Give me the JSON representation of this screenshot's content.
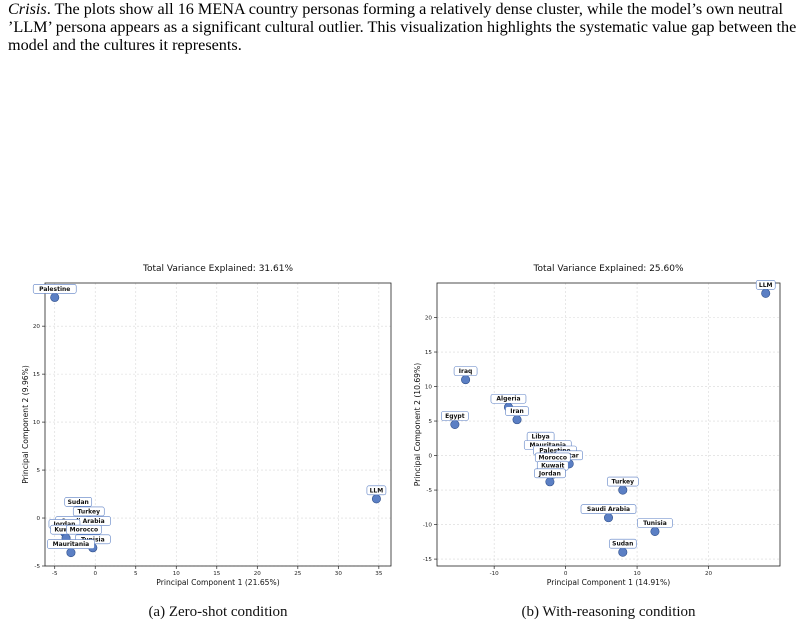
{
  "caption": {
    "italic_lead": "Crisis",
    "text": ". The plots show all 16 MENA country personas forming a relatively dense cluster, while the model’s own neutral ’LLM’ persona appears as a significant cultural outlier. This visualization highlights the systematic value gap between the model and the cultures it represents."
  },
  "chart_data": [
    {
      "type": "scatter",
      "title": "Total Variance Explained: 31.61%",
      "xlabel": "Principal Component 1 (21.65%)",
      "ylabel": "Principal Component 2 (9.96%)",
      "xlim": [
        -6.2,
        36.5
      ],
      "ylim": [
        -5,
        24.5
      ],
      "xticks": [
        -5,
        0,
        5,
        10,
        15,
        20,
        25,
        30,
        35
      ],
      "yticks": [
        -5,
        0,
        5,
        10,
        15,
        20
      ],
      "grid": true,
      "points": [
        {
          "label": "Palestine",
          "x": -5,
          "y": 23
        },
        {
          "label": "LLM",
          "x": 34.7,
          "y": 2
        },
        {
          "label": "Sudan",
          "x": -2.1,
          "y": 0.8
        },
        {
          "label": "Turkey",
          "x": -0.8,
          "y": -0.2
        },
        {
          "label": "Saudi Arabia",
          "x": -1.5,
          "y": -1.2
        },
        {
          "label": "Jordan",
          "x": -3.8,
          "y": -1.5
        },
        {
          "label": "Kuwait",
          "x": -3.6,
          "y": -2.1
        },
        {
          "label": "Morocco",
          "x": -1.4,
          "y": -2.1
        },
        {
          "label": "Tunisia",
          "x": -0.3,
          "y": -3.1
        },
        {
          "label": "Mauritania",
          "x": -3.0,
          "y": -3.6
        }
      ],
      "caption": "(a) Zero-shot condition"
    },
    {
      "type": "scatter",
      "title": "Total Variance Explained: 25.60%",
      "xlabel": "Principal Component 1 (14.91%)",
      "ylabel": "Principal Component 2 (10.69%)",
      "xlim": [
        -18,
        30
      ],
      "ylim": [
        -16,
        25
      ],
      "xticks": [
        -10,
        0,
        10,
        20
      ],
      "yticks": [
        -15,
        -10,
        -5,
        0,
        5,
        10,
        15,
        20
      ],
      "grid": true,
      "points": [
        {
          "label": "LLM",
          "x": 28,
          "y": 23.5
        },
        {
          "label": "Iraq",
          "x": -14,
          "y": 11
        },
        {
          "label": "Algeria",
          "x": -8,
          "y": 7
        },
        {
          "label": "Iran",
          "x": -6.8,
          "y": 5.2
        },
        {
          "label": "Egypt",
          "x": -15.5,
          "y": 4.5
        },
        {
          "label": "Libya",
          "x": -3.5,
          "y": 1.5
        },
        {
          "label": "Mauritania",
          "x": -2.5,
          "y": 0.3
        },
        {
          "label": "Palestine",
          "x": -1.5,
          "y": -0.5
        },
        {
          "label": "Qatar",
          "x": 0.5,
          "y": -1.2
        },
        {
          "label": "Morocco",
          "x": -1.8,
          "y": -1.5
        },
        {
          "label": "Kuwait",
          "x": -1.8,
          "y": -2.7
        },
        {
          "label": "Jordan",
          "x": -2.2,
          "y": -3.8
        },
        {
          "label": "Turkey",
          "x": 8,
          "y": -5
        },
        {
          "label": "Saudi Arabia",
          "x": 6,
          "y": -9
        },
        {
          "label": "Tunisia",
          "x": 12.5,
          "y": -11
        },
        {
          "label": "Sudan",
          "x": 8,
          "y": -14
        }
      ],
      "caption": "(b) With-reasoning condition"
    }
  ]
}
